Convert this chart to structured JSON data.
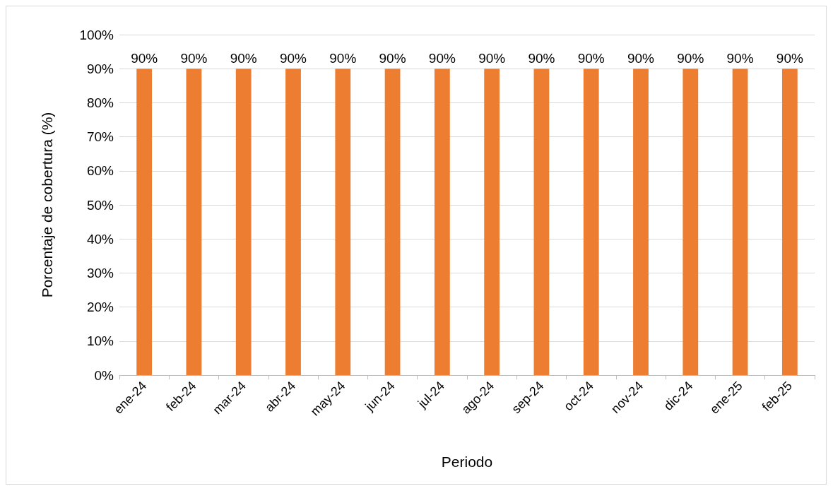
{
  "chart_data": {
    "type": "bar",
    "xlabel": "Periodo",
    "ylabel": "Porcentaje de cobertura (%)",
    "categories": [
      "ene-24",
      "feb-24",
      "mar-24",
      "abr-24",
      "may-24",
      "jun-24",
      "jul-24",
      "ago-24",
      "sep-24",
      "oct-24",
      "nov-24",
      "dic-24",
      "ene-25",
      "feb-25"
    ],
    "values": [
      90,
      90,
      90,
      90,
      90,
      90,
      90,
      90,
      90,
      90,
      90,
      90,
      90,
      90
    ],
    "value_labels": [
      "90%",
      "90%",
      "90%",
      "90%",
      "90%",
      "90%",
      "90%",
      "90%",
      "90%",
      "90%",
      "90%",
      "90%",
      "90%",
      "90%"
    ],
    "color": "#ed7d31",
    "ylim": [
      0,
      100
    ],
    "yticks": [
      {
        "value": 0,
        "label": "0%"
      },
      {
        "value": 10,
        "label": "10%"
      },
      {
        "value": 20,
        "label": "20%"
      },
      {
        "value": 30,
        "label": "30%"
      },
      {
        "value": 40,
        "label": "40%"
      },
      {
        "value": 50,
        "label": "50%"
      },
      {
        "value": 60,
        "label": "60%"
      },
      {
        "value": 70,
        "label": "70%"
      },
      {
        "value": 80,
        "label": "80%"
      },
      {
        "value": 90,
        "label": "90%"
      },
      {
        "value": 100,
        "label": "100%"
      }
    ],
    "grid": "y"
  }
}
